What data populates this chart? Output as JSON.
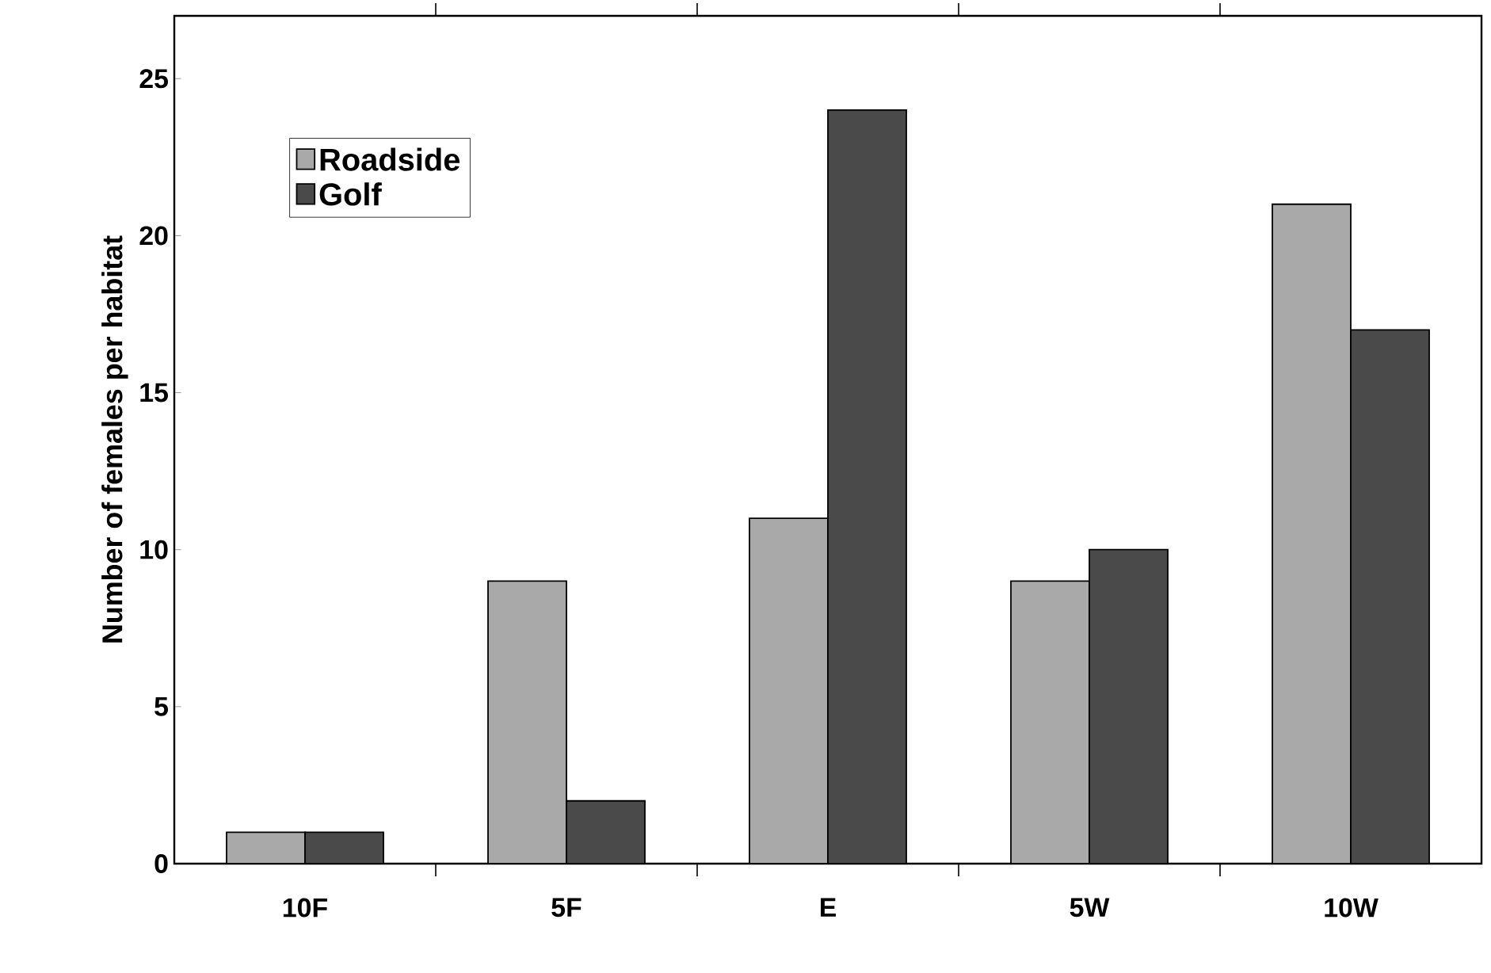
{
  "chart_data": {
    "type": "bar",
    "ylabel": "Number of females per habitat",
    "categories": [
      "10F",
      "5F",
      "E",
      "5W",
      "10W"
    ],
    "series": [
      {
        "name": "Roadside",
        "color": "#a9a9a9",
        "values": [
          1,
          9,
          11,
          9,
          21
        ]
      },
      {
        "name": "Golf",
        "color": "#4a4a4a",
        "values": [
          1,
          2,
          24,
          10,
          17
        ]
      }
    ],
    "ylim": [
      0,
      27
    ],
    "yticks": [
      0,
      5,
      10,
      15,
      20,
      25
    ],
    "legend": "top left",
    "grid": false
  }
}
